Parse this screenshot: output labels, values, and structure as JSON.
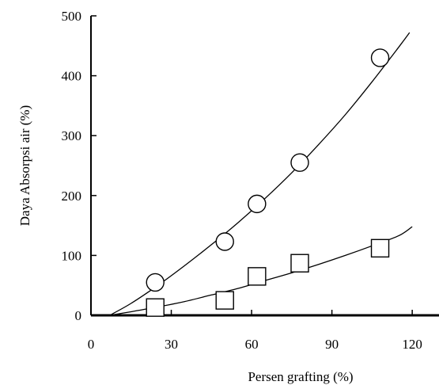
{
  "chart_data": {
    "type": "scatter",
    "xlabel": "Persen grafting (%)",
    "ylabel": "Daya Absorpsi air (%)",
    "xlim": [
      0,
      130
    ],
    "ylim": [
      0,
      500
    ],
    "xticks": [
      0,
      30,
      60,
      90,
      120
    ],
    "yticks": [
      0,
      100,
      200,
      300,
      400,
      500
    ],
    "xtick_labels": [
      "0",
      "30",
      "60",
      "90",
      "120"
    ],
    "ytick_labels": [
      "0",
      "100",
      "200",
      "300",
      "400",
      "500"
    ],
    "grid": false,
    "legend": "none",
    "series": [
      {
        "marker": "circle",
        "color": "#000000",
        "x": [
          24,
          50,
          62,
          78,
          108
        ],
        "y": [
          55,
          123,
          186,
          255,
          430
        ],
        "trend_x": [
          7,
          15,
          25,
          35,
          45,
          55,
          65,
          75,
          85,
          95,
          105,
          115,
          119
        ],
        "trend_y": [
          0,
          20,
          50,
          83,
          118,
          155,
          195,
          238,
          285,
          335,
          390,
          448,
          472
        ]
      },
      {
        "marker": "square",
        "color": "#000000",
        "x": [
          24,
          50,
          62,
          78,
          108
        ],
        "y": [
          13,
          25,
          65,
          87,
          112
        ],
        "trend_x": [
          7,
          15,
          25,
          35,
          45,
          55,
          65,
          75,
          85,
          95,
          105,
          115,
          120
        ],
        "trend_y": [
          0,
          6,
          14,
          23,
          34,
          45,
          58,
          71,
          85,
          100,
          116,
          133,
          148
        ]
      }
    ]
  }
}
